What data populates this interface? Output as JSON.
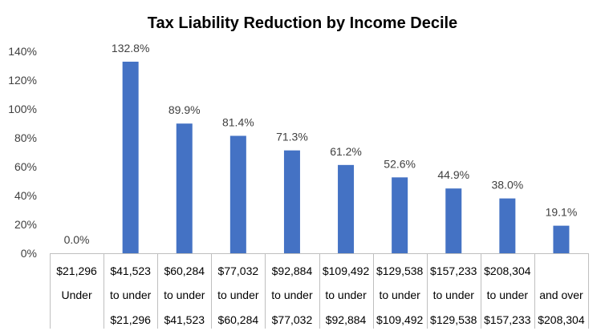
{
  "chart_data": {
    "type": "bar",
    "title": "Tax Liability Reduction by Income Decile",
    "xlabel": "",
    "ylabel": "",
    "ylim": [
      0,
      140
    ],
    "ytick_step": 20,
    "yticks": [
      "0%",
      "20%",
      "40%",
      "60%",
      "80%",
      "100%",
      "120%",
      "140%"
    ],
    "grid": false,
    "legend": "none",
    "bar_color": "#4472c4",
    "categories": [
      [
        "$21,296",
        "Under",
        ""
      ],
      [
        "$41,523",
        "to under",
        "$21,296"
      ],
      [
        "$60,284",
        "to under",
        "$41,523"
      ],
      [
        "$77,032",
        "to under",
        "$60,284"
      ],
      [
        "$92,884",
        "to under",
        "$77,032"
      ],
      [
        "$109,492",
        "to under",
        "$92,884"
      ],
      [
        "$129,538",
        "to under",
        "$109,492"
      ],
      [
        "$157,233",
        "to under",
        "$129,538"
      ],
      [
        "$208,304",
        "to under",
        "$157,233"
      ],
      [
        "",
        "and over",
        "$208,304"
      ]
    ],
    "values": [
      0.0,
      132.8,
      89.9,
      81.4,
      71.3,
      61.2,
      52.6,
      44.9,
      38.0,
      19.1
    ],
    "data_labels": [
      "0.0%",
      "132.8%",
      "89.9%",
      "81.4%",
      "71.3%",
      "61.2%",
      "52.6%",
      "44.9%",
      "38.0%",
      "19.1%"
    ]
  }
}
